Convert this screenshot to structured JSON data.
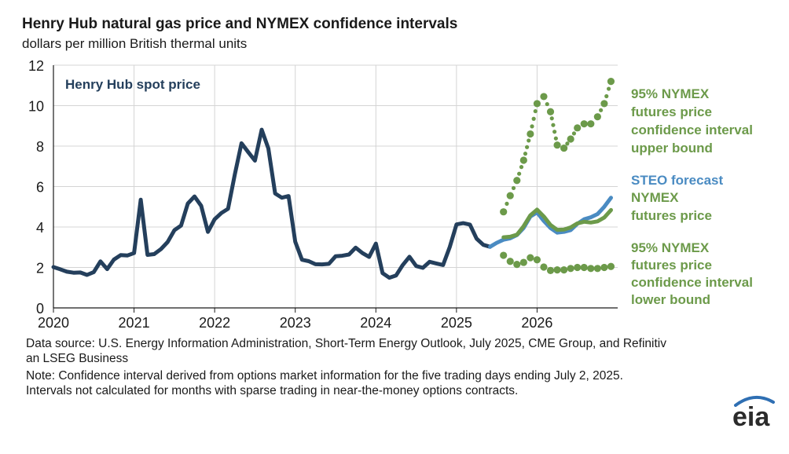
{
  "header": {
    "title": "Henry Hub natural gas price and NYMEX confidence intervals",
    "subtitle": "dollars per million British thermal units"
  },
  "footer": {
    "source": "Data source: U.S. Energy Information Administration, Short-Term Energy Outlook, July 2025, CME Group, and Refinitiv an LSEG Business",
    "note": "Note: Confidence interval derived from options market information for the five trading days ending July 2, 2025. Intervals not calculated for months with sparse trading in near-the-money options contracts."
  },
  "logo": {
    "text": "eia",
    "icon": "eia-logo-arc"
  },
  "colors": {
    "historical": "#243f5c",
    "steo": "#4a8bc2",
    "nymex": "#6c9a4a",
    "grid": "#d4d4d4"
  },
  "chart_data": {
    "type": "line",
    "title": "Henry Hub natural gas price and NYMEX confidence intervals",
    "ylabel": "dollars per million British thermal units",
    "ylim": [
      0,
      12
    ],
    "yticks": [
      0,
      2,
      4,
      6,
      8,
      10,
      12
    ],
    "xlim": [
      2020.0,
      2027.0
    ],
    "xticks": [
      "2020",
      "2021",
      "2022",
      "2023",
      "2024",
      "2025",
      "2026"
    ],
    "grid": true,
    "annotations": {
      "spot": "Henry Hub spot price",
      "upper": "95% NYMEX futures price confidence interval upper bound",
      "steo": "STEO forecast",
      "nymex": "NYMEX futures price",
      "lower": "95% NYMEX futures price confidence interval lower bound"
    },
    "series": [
      {
        "name": "Henry Hub spot price",
        "style": "solid",
        "x": [
          "2020-01",
          "2020-02",
          "2020-03",
          "2020-04",
          "2020-05",
          "2020-06",
          "2020-07",
          "2020-08",
          "2020-09",
          "2020-10",
          "2020-11",
          "2020-12",
          "2021-01",
          "2021-02",
          "2021-03",
          "2021-04",
          "2021-05",
          "2021-06",
          "2021-07",
          "2021-08",
          "2021-09",
          "2021-10",
          "2021-11",
          "2021-12",
          "2022-01",
          "2022-02",
          "2022-03",
          "2022-04",
          "2022-05",
          "2022-06",
          "2022-07",
          "2022-08",
          "2022-09",
          "2022-10",
          "2022-11",
          "2022-12",
          "2023-01",
          "2023-02",
          "2023-03",
          "2023-04",
          "2023-05",
          "2023-06",
          "2023-07",
          "2023-08",
          "2023-09",
          "2023-10",
          "2023-11",
          "2023-12",
          "2024-01",
          "2024-02",
          "2024-03",
          "2024-04",
          "2024-05",
          "2024-06",
          "2024-07",
          "2024-08",
          "2024-09",
          "2024-10",
          "2024-11",
          "2024-12",
          "2025-01",
          "2025-02",
          "2025-03",
          "2025-04",
          "2025-05",
          "2025-06"
        ],
        "values": [
          2.02,
          1.91,
          1.79,
          1.74,
          1.75,
          1.63,
          1.77,
          2.3,
          1.92,
          2.39,
          2.61,
          2.59,
          2.71,
          5.35,
          2.62,
          2.66,
          2.91,
          3.26,
          3.84,
          4.07,
          5.16,
          5.51,
          5.05,
          3.76,
          4.38,
          4.69,
          4.9,
          6.6,
          8.14,
          7.7,
          7.28,
          8.81,
          7.88,
          5.66,
          5.45,
          5.53,
          3.27,
          2.38,
          2.31,
          2.16,
          2.15,
          2.18,
          2.55,
          2.58,
          2.64,
          2.98,
          2.71,
          2.52,
          3.18,
          1.72,
          1.49,
          1.6,
          2.12,
          2.53,
          2.07,
          1.98,
          2.28,
          2.2,
          2.12,
          3.01,
          4.13,
          4.19,
          4.12,
          3.42,
          3.12,
          3.02
        ]
      },
      {
        "name": "STEO forecast",
        "style": "solid",
        "x": [
          "2025-06",
          "2025-07",
          "2025-08",
          "2025-09",
          "2025-10",
          "2025-11",
          "2025-12",
          "2026-01",
          "2026-02",
          "2026-03",
          "2026-04",
          "2026-05",
          "2026-06",
          "2026-07",
          "2026-08",
          "2026-09",
          "2026-10",
          "2026-11",
          "2026-12"
        ],
        "values": [
          3.02,
          3.22,
          3.37,
          3.44,
          3.6,
          3.95,
          4.52,
          4.72,
          4.3,
          3.95,
          3.72,
          3.76,
          3.85,
          4.16,
          4.38,
          4.48,
          4.64,
          5.0,
          5.45
        ]
      },
      {
        "name": "NYMEX futures price",
        "style": "solid",
        "x": [
          "2025-08",
          "2025-09",
          "2025-10",
          "2025-11",
          "2025-12",
          "2026-01",
          "2026-02",
          "2026-03",
          "2026-04",
          "2026-05",
          "2026-06",
          "2026-07",
          "2026-08",
          "2026-09",
          "2026-10",
          "2026-11",
          "2026-12"
        ],
        "values": [
          3.49,
          3.52,
          3.62,
          4.04,
          4.58,
          4.86,
          4.52,
          4.1,
          3.86,
          3.87,
          3.98,
          4.18,
          4.26,
          4.22,
          4.28,
          4.47,
          4.84
        ]
      },
      {
        "name": "95% NYMEX futures price confidence interval upper bound",
        "style": "dotted",
        "x": [
          "2025-08",
          "2025-09",
          "2025-10",
          "2025-11",
          "2025-12",
          "2026-01",
          "2026-02",
          "2026-03",
          "2026-04",
          "2026-05",
          "2026-06",
          "2026-07",
          "2026-08",
          "2026-09",
          "2026-10",
          "2026-11",
          "2026-12"
        ],
        "values": [
          4.75,
          5.55,
          6.3,
          7.3,
          8.6,
          10.1,
          10.45,
          9.7,
          8.05,
          7.9,
          8.35,
          8.9,
          9.1,
          9.1,
          9.45,
          10.1,
          11.2
        ]
      },
      {
        "name": "95% NYMEX futures price confidence interval lower bound",
        "style": "dotted",
        "x": [
          "2025-08",
          "2025-09",
          "2025-10",
          "2025-11",
          "2025-12",
          "2026-01",
          "2026-02",
          "2026-03",
          "2026-04",
          "2026-05",
          "2026-06",
          "2026-07",
          "2026-08",
          "2026-09",
          "2026-10",
          "2026-11",
          "2026-12"
        ],
        "values": [
          2.6,
          2.3,
          2.15,
          2.25,
          2.48,
          2.38,
          2.02,
          1.85,
          1.88,
          1.88,
          1.95,
          2.0,
          2.0,
          1.95,
          1.95,
          2.0,
          2.05
        ]
      }
    ]
  }
}
